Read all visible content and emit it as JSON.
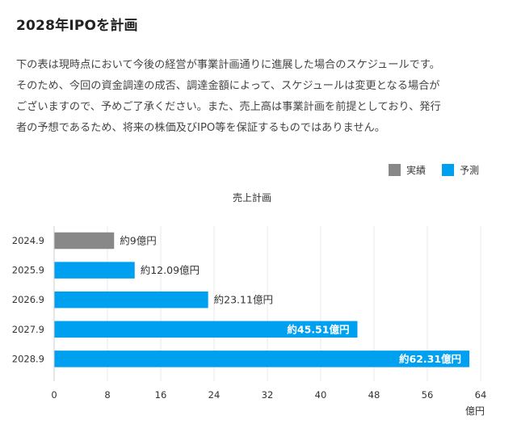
{
  "page": {
    "title": "2028年IPOを計画",
    "description_lines": [
      "下の表は現時点において今後の経営が事業計画通りに進展した場合のスケジュールです。",
      "そのため、今回の資金調達の成否、調達金額によって、スケジュールは変更となる場合が",
      "ございますので、予めご了承ください。また、売上高は事業計画を前提としており、発行",
      "者の予想であるため、将来の株価及びIPO等を保証するものではありません。"
    ]
  },
  "chart_data": {
    "type": "bar",
    "orientation": "horizontal",
    "title": "売上計画",
    "xlabel": "億円",
    "ylabel": "",
    "xlim": [
      0,
      64
    ],
    "xticks": [
      0,
      8,
      16,
      24,
      32,
      40,
      48,
      56,
      64
    ],
    "grid": true,
    "legend_position": "top-right",
    "legend": [
      {
        "name": "実績",
        "color": "#888888"
      },
      {
        "name": "予測",
        "color": "#00a0f0"
      }
    ],
    "categories": [
      "2024.9",
      "2025.9",
      "2026.9",
      "2027.9",
      "2028.9"
    ],
    "values": [
      9,
      12.09,
      23.11,
      45.51,
      62.31
    ],
    "bar_types": [
      "実績",
      "予測",
      "予測",
      "予測",
      "予測"
    ],
    "data_labels": [
      "約9億円",
      "約12.09億円",
      "約23.11億円",
      "約45.51億円",
      "約62.31億円"
    ]
  }
}
